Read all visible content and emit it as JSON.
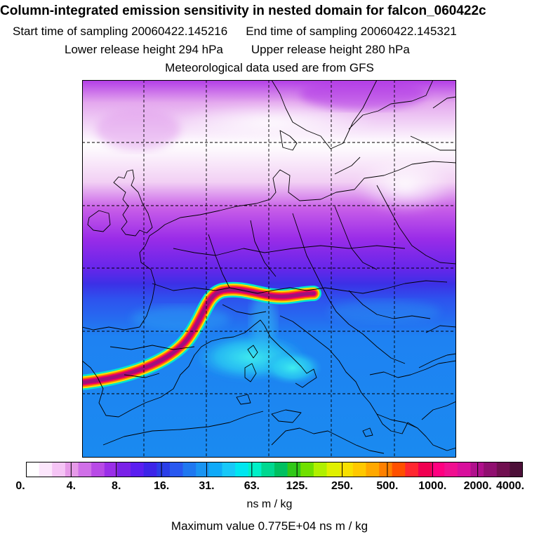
{
  "header": {
    "title": "Column-integrated emission sensitivity in nested domain for falcon_060422c",
    "start_label": "Start time of sampling 20060422.145216",
    "end_label": "End time of sampling 20060422.145321",
    "lower_label": "Lower release height  294 hPa",
    "upper_label": "Upper release height  280 hPa",
    "met_label": "Meteorological data used are from GFS"
  },
  "legend": {
    "tick_labels": [
      "0.",
      "4.",
      "8.",
      "16.",
      "31.",
      "63.",
      "125.",
      "250.",
      "500.",
      "1000.",
      "2000.",
      "4000."
    ],
    "colors": [
      "#ffffff",
      "#fce6fc",
      "#f5c4f5",
      "#e69ae8",
      "#d070e8",
      "#b84ae6",
      "#9a2ee8",
      "#7a22e8",
      "#5a1ef0",
      "#3c24e8",
      "#2a3ee8",
      "#2858f0",
      "#1f78f0",
      "#1a94f2",
      "#10aaf8",
      "#18c8f8",
      "#00e6f0",
      "#00f0c8",
      "#00d890",
      "#00c060",
      "#30c818",
      "#70e000",
      "#b0f000",
      "#e0f000",
      "#f8e000",
      "#ffc800",
      "#ffa800",
      "#ff8000",
      "#ff5000",
      "#ff2830",
      "#f00050",
      "#ff0080",
      "#f01090",
      "#d8109c",
      "#b0108c",
      "#901070",
      "#701050",
      "#4c1038"
    ],
    "units": "ns m / kg",
    "max_value_text": "Maximum value  0.775E+04 ns m / kg"
  }
}
